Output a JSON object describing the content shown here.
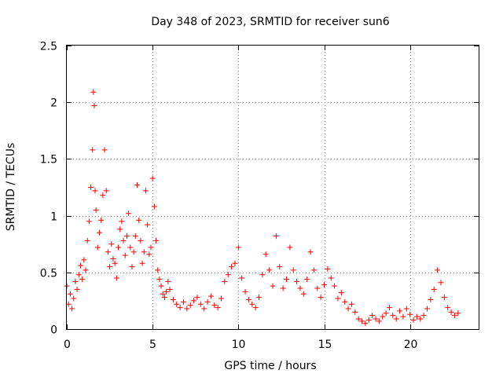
{
  "chart_data": {
    "type": "scatter",
    "title": "Day 348 of 2023, SRMTID for receiver sun6",
    "xlabel": "GPS time / hours",
    "ylabel": "SRMTID / TECUs",
    "xlim": [
      0,
      24
    ],
    "ylim": [
      0,
      2.5
    ],
    "xticks": [
      0,
      5,
      10,
      15,
      20
    ],
    "xtick_labels": [
      "0",
      "5",
      "10",
      "15",
      "20"
    ],
    "yticks": [
      0,
      0.5,
      1,
      1.5,
      2,
      2.5
    ],
    "ytick_labels": [
      "0",
      "0.5",
      "1",
      "1.5",
      "2",
      "2.5"
    ],
    "grid": true,
    "marker": "+",
    "marker_color": "#ff0000",
    "series": [
      {
        "name": "SRMTID",
        "x": [
          0.0,
          0.1,
          0.2,
          0.3,
          0.4,
          0.5,
          0.6,
          0.7,
          0.8,
          0.9,
          1.0,
          1.1,
          1.2,
          1.3,
          1.4,
          1.5,
          1.55,
          1.6,
          1.65,
          1.7,
          1.8,
          1.9,
          2.0,
          2.1,
          2.2,
          2.3,
          2.4,
          2.5,
          2.6,
          2.7,
          2.8,
          2.9,
          3.0,
          3.1,
          3.2,
          3.3,
          3.4,
          3.5,
          3.6,
          3.7,
          3.8,
          3.9,
          4.0,
          4.1,
          4.2,
          4.3,
          4.4,
          4.5,
          4.6,
          4.7,
          4.8,
          4.9,
          5.0,
          5.1,
          5.2,
          5.3,
          5.4,
          5.5,
          5.6,
          5.7,
          5.8,
          5.9,
          6.0,
          6.2,
          6.4,
          6.6,
          6.8,
          7.0,
          7.2,
          7.4,
          7.6,
          7.8,
          8.0,
          8.2,
          8.4,
          8.6,
          8.8,
          9.0,
          9.2,
          9.4,
          9.6,
          9.8,
          10.0,
          10.2,
          10.4,
          10.6,
          10.8,
          11.0,
          11.2,
          11.4,
          11.6,
          11.8,
          12.0,
          12.2,
          12.4,
          12.6,
          12.8,
          13.0,
          13.2,
          13.4,
          13.6,
          13.8,
          14.0,
          14.2,
          14.4,
          14.6,
          14.8,
          15.0,
          15.2,
          15.4,
          15.6,
          15.8,
          16.0,
          16.2,
          16.4,
          16.6,
          16.8,
          17.0,
          17.2,
          17.4,
          17.6,
          17.8,
          18.0,
          18.2,
          18.4,
          18.6,
          18.8,
          19.0,
          19.2,
          19.4,
          19.6,
          19.8,
          20.0,
          20.2,
          20.4,
          20.6,
          20.8,
          21.0,
          21.2,
          21.4,
          21.6,
          21.8,
          22.0,
          22.2,
          22.4,
          22.6,
          22.8
        ],
        "y": [
          0.38,
          0.22,
          0.31,
          0.18,
          0.27,
          0.42,
          0.35,
          0.48,
          0.56,
          0.44,
          0.61,
          0.52,
          0.78,
          0.95,
          1.25,
          1.58,
          2.09,
          1.97,
          1.22,
          1.05,
          0.72,
          0.85,
          0.96,
          1.18,
          1.58,
          1.22,
          0.68,
          0.55,
          0.75,
          0.62,
          0.58,
          0.45,
          0.72,
          0.88,
          0.95,
          0.78,
          0.65,
          0.82,
          1.02,
          0.72,
          0.55,
          0.68,
          0.82,
          1.27,
          0.96,
          0.78,
          0.58,
          0.68,
          1.22,
          0.92,
          0.66,
          0.72,
          1.33,
          1.08,
          0.78,
          0.52,
          0.44,
          0.38,
          0.31,
          0.28,
          0.33,
          0.42,
          0.35,
          0.26,
          0.22,
          0.19,
          0.24,
          0.18,
          0.21,
          0.25,
          0.28,
          0.22,
          0.18,
          0.24,
          0.29,
          0.21,
          0.19,
          0.27,
          0.42,
          0.48,
          0.55,
          0.58,
          0.72,
          0.45,
          0.33,
          0.26,
          0.22,
          0.19,
          0.28,
          0.48,
          0.66,
          0.52,
          0.38,
          0.82,
          0.55,
          0.36,
          0.44,
          0.72,
          0.52,
          0.42,
          0.36,
          0.31,
          0.44,
          0.68,
          0.52,
          0.36,
          0.28,
          0.39,
          0.53,
          0.45,
          0.38,
          0.27,
          0.32,
          0.24,
          0.18,
          0.22,
          0.15,
          0.09,
          0.07,
          0.05,
          0.08,
          0.12,
          0.09,
          0.07,
          0.11,
          0.14,
          0.19,
          0.12,
          0.09,
          0.16,
          0.11,
          0.18,
          0.13,
          0.08,
          0.11,
          0.09,
          0.12,
          0.18,
          0.26,
          0.35,
          0.52,
          0.41,
          0.28,
          0.19,
          0.15,
          0.12,
          0.14
        ]
      }
    ]
  }
}
